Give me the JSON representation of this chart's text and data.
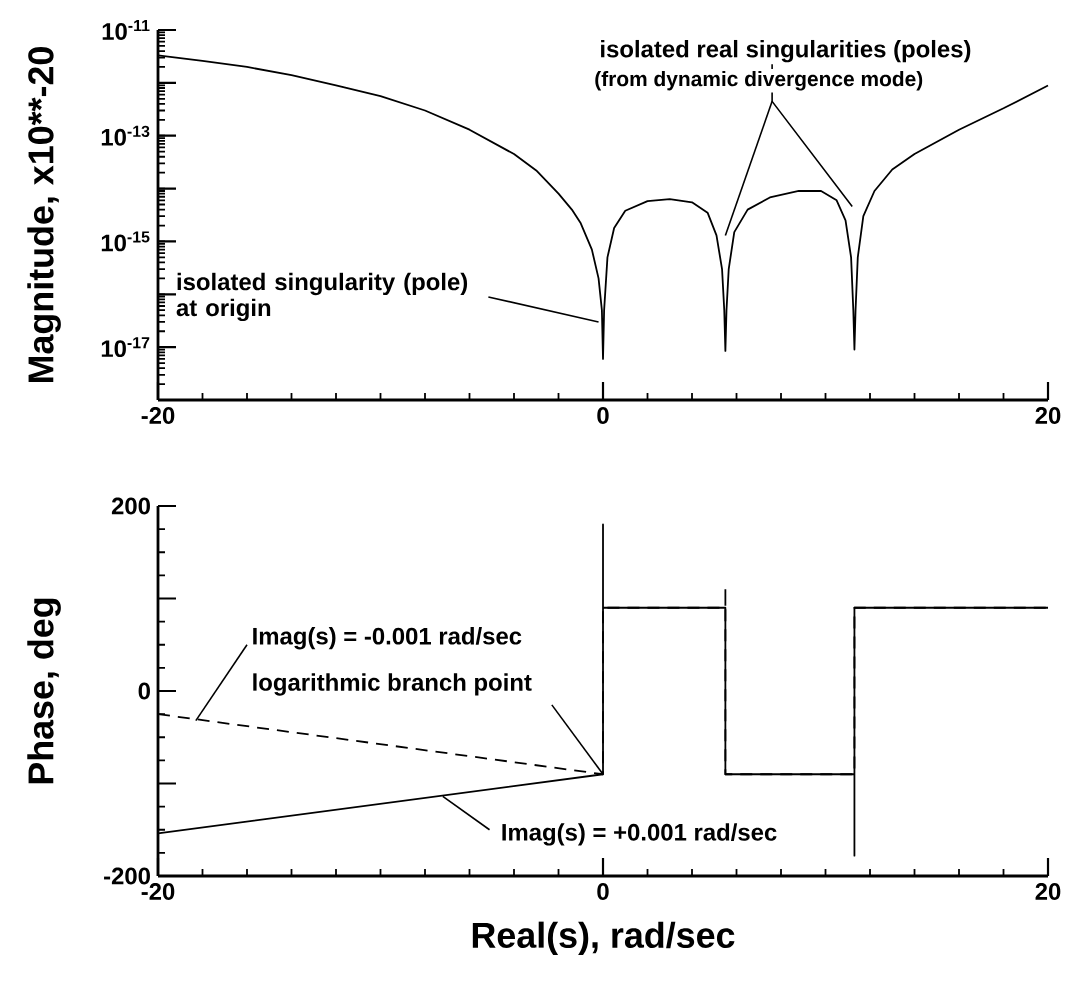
{
  "chart_data": [
    {
      "type": "line",
      "ylabel": "Magnitude, x10**-20",
      "log": "y",
      "xlim": [
        -20,
        20
      ],
      "ylim": [
        1e-18,
        1e-11
      ],
      "xticks": [
        -20,
        0,
        20
      ],
      "yticks": [
        {
          "value": 1e-18,
          "label": null
        },
        {
          "value": 1e-17,
          "label": "10$^{-17}$"
        },
        {
          "value": 1e-16,
          "label": null
        },
        {
          "value": 1e-15,
          "label": "10$^{-15}$"
        },
        {
          "value": 1e-14,
          "label": null
        },
        {
          "value": 1e-13,
          "label": "10$^{-13}$"
        },
        {
          "value": 1e-12,
          "label": null
        },
        {
          "value": 1e-11,
          "label": "10$^{-11}$"
        }
      ],
      "series": [
        {
          "color": "#000000",
          "line_style": "solid",
          "x": [
            -20,
            -18,
            -16,
            -14,
            -12,
            -10,
            -8,
            -6,
            -4,
            -3,
            -2,
            -1.4,
            -1,
            -0.5,
            -0.2,
            -0.05,
            0,
            0.05,
            0.2,
            0.5,
            1,
            2,
            3,
            4,
            4.7,
            5.1,
            5.35,
            5.45,
            5.5,
            5.55,
            5.65,
            5.9,
            6.5,
            7.5,
            8.8,
            9.8,
            10.5,
            10.9,
            11.15,
            11.25,
            11.3,
            11.35,
            11.45,
            11.7,
            12.2,
            13,
            14,
            16,
            18,
            20
          ],
          "values": [
            3.3e-12,
            2.6e-12,
            2e-12,
            1.4e-12,
            9e-13,
            5.6e-13,
            3e-13,
            1.3e-13,
            4.5e-14,
            2.2e-14,
            8e-15,
            4e-15,
            2.2e-15,
            7e-16,
            2e-16,
            5e-17,
            6e-18,
            5e-17,
            5e-16,
            1.8e-15,
            3.8e-15,
            5.8e-15,
            6.3e-15,
            5.5e-15,
            3.5e-15,
            1.3e-15,
            3e-16,
            5e-17,
            8.5e-18,
            5e-17,
            3e-16,
            1.5e-15,
            4e-15,
            6.8e-15,
            9e-15,
            9e-15,
            6e-15,
            2.5e-15,
            5e-16,
            5e-17,
            9e-18,
            5e-17,
            5e-16,
            3e-15,
            9e-15,
            2.3e-14,
            4.5e-14,
            1.3e-13,
            3.3e-13,
            8.9e-13
          ]
        }
      ],
      "annotations": [
        {
          "text": "isolated singularity (pole) at origin",
          "x": -0.2,
          "y": 3e-17
        },
        {
          "text": "isolated real singularities (poles)",
          "x": 11.2,
          "y": 4.6e-15
        },
        {
          "text": "(from dynamic divergence mode)",
          "x": 5.5,
          "y": 1.3e-15
        }
      ]
    },
    {
      "type": "line",
      "ylabel": "Phase, deg",
      "xlabel": "Real(s), rad/sec",
      "xlim": [
        -20,
        20
      ],
      "ylim": [
        -200,
        200
      ],
      "xticks": [
        -20,
        0,
        20
      ],
      "yticks": [
        -200,
        {
          "value": -100,
          "label": null
        },
        0,
        {
          "value": 100,
          "label": null
        },
        200
      ],
      "series": [
        {
          "color": "#000000",
          "line_style": "solid",
          "x": [
            -20,
            0,
            0,
            0,
            5.5,
            5.5,
            11.3,
            11.3,
            11.3,
            20
          ],
          "values": [
            -154,
            -90,
            180,
            90,
            90,
            -90,
            -90,
            -178,
            90,
            90
          ]
        },
        {
          "color": "#000000",
          "line_style": "dashed",
          "x": [
            -20,
            0,
            0,
            5.5,
            5.5,
            5.5,
            11.3,
            11.3,
            20
          ],
          "values": [
            -25,
            -90,
            90,
            90,
            112,
            -90,
            -90,
            90,
            90
          ]
        }
      ],
      "annotations": [
        {
          "text": "Imag(s) = -0.001 rad/sec",
          "x": -18.3,
          "y": -32
        },
        {
          "text": "logarithmic branch point",
          "x": 0,
          "y": -90
        },
        {
          "text": "Imag(s) = +0.001 rad/sec",
          "x": -7.2,
          "y": -114
        }
      ]
    }
  ]
}
